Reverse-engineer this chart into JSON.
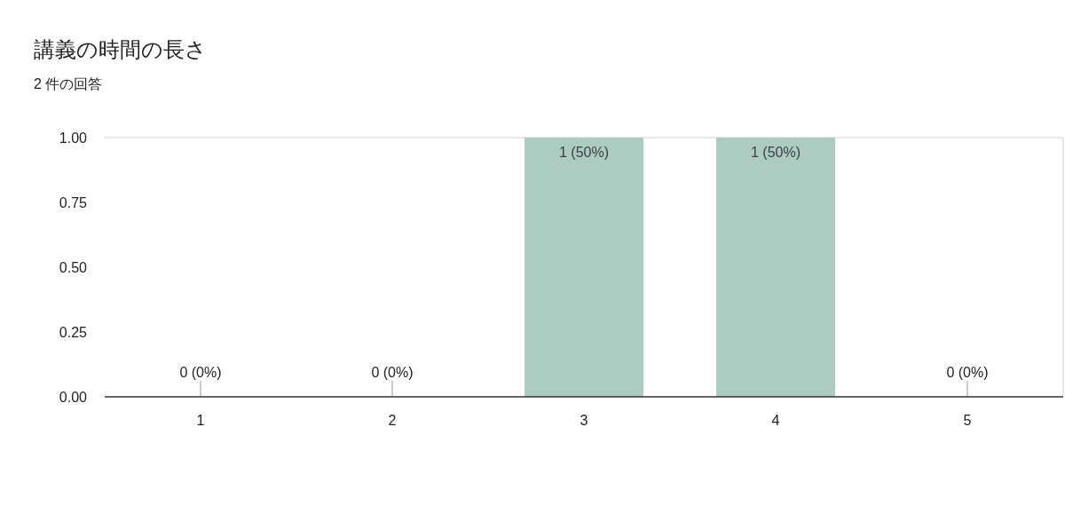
{
  "chart_data": {
    "type": "bar",
    "title": "講義の時間の長さ",
    "subtitle": "2 件の回答",
    "categories": [
      "1",
      "2",
      "3",
      "4",
      "5"
    ],
    "values": [
      0,
      0,
      1,
      1,
      0
    ],
    "value_labels": [
      "0 (0%)",
      "0 (0%)",
      "1 (50%)",
      "1 (50%)",
      "0 (0%)"
    ],
    "color": "#acccc1",
    "ylim": [
      0,
      1
    ],
    "yticks": [
      {
        "value": 0,
        "label": "0.00"
      },
      {
        "value": 0.25,
        "label": "0.25"
      },
      {
        "value": 0.5,
        "label": "0.50"
      },
      {
        "value": 0.75,
        "label": "0.75"
      },
      {
        "value": 1,
        "label": "1.00"
      }
    ]
  }
}
